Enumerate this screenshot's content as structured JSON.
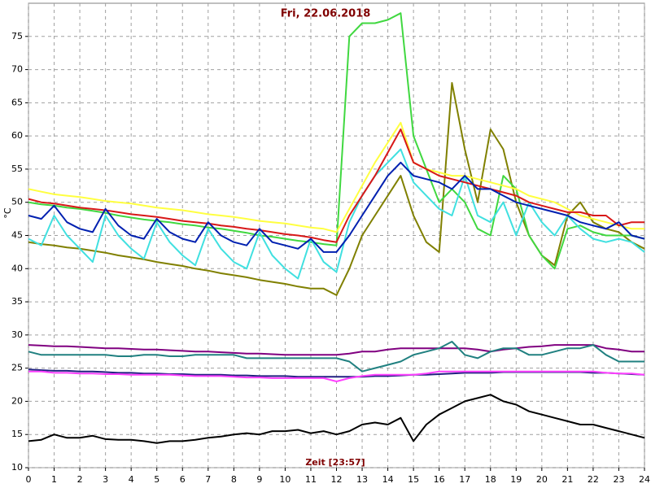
{
  "chart_data": {
    "type": "line",
    "title": "Fri, 22.06.2018",
    "x_label": "Zeit [23:57]",
    "y_label": "°C",
    "xlim": [
      0,
      24
    ],
    "xticks": [
      0,
      1,
      2,
      3,
      4,
      5,
      6,
      7,
      8,
      9,
      10,
      11,
      12,
      13,
      14,
      15,
      16,
      17,
      18,
      19,
      20,
      21,
      22,
      23,
      24
    ],
    "ylim": [
      10,
      80
    ],
    "yticks": [
      10,
      15,
      20,
      25,
      30,
      35,
      40,
      45,
      50,
      55,
      60,
      65,
      70,
      75
    ],
    "grid": true,
    "x": [
      0,
      0.5,
      1,
      1.5,
      2,
      2.5,
      3,
      3.5,
      4,
      4.5,
      5,
      5.5,
      6,
      6.5,
      7,
      7.5,
      8,
      8.5,
      9,
      9.5,
      10,
      10.5,
      11,
      11.5,
      12,
      12.5,
      13,
      13.5,
      14,
      14.5,
      15,
      15.5,
      16,
      16.5,
      17,
      17.5,
      18,
      18.5,
      19,
      19.5,
      20,
      20.5,
      21,
      21.5,
      22,
      22.5,
      23,
      23.5,
      24
    ],
    "series": [
      {
        "color": "#000000",
        "values": [
          14,
          14.2,
          15,
          14.5,
          14.5,
          14.8,
          14.3,
          14.2,
          14.2,
          14,
          13.7,
          14,
          14,
          14.2,
          14.5,
          14.7,
          15,
          15.2,
          15,
          15.5,
          15.5,
          15.7,
          15.2,
          15.5,
          15,
          15.5,
          16.5,
          16.8,
          16.5,
          17.5,
          14,
          16.5,
          18,
          19,
          20,
          20.5,
          21,
          20,
          19.5,
          18.5,
          18,
          17.5,
          17,
          16.5,
          16.5,
          16,
          15.5,
          15,
          14.5
        ]
      },
      {
        "color": "#202080",
        "values": [
          24.8,
          24.7,
          24.6,
          24.6,
          24.5,
          24.5,
          24.4,
          24.3,
          24.3,
          24.2,
          24.2,
          24.1,
          24.1,
          24,
          24,
          24,
          23.9,
          23.9,
          23.8,
          23.8,
          23.8,
          23.7,
          23.7,
          23.7,
          23.7,
          23.7,
          23.7,
          23.8,
          23.8,
          23.9,
          24,
          24,
          24.1,
          24.2,
          24.3,
          24.3,
          24.3,
          24.4,
          24.4,
          24.4,
          24.4,
          24.4,
          24.4,
          24.4,
          24.3,
          24.3,
          24.2,
          24.1,
          24
        ]
      },
      {
        "color": "#ff40ff",
        "values": [
          24.5,
          24.5,
          24.3,
          24.3,
          24.2,
          24.2,
          24.1,
          24.1,
          24,
          24,
          24,
          24,
          23.9,
          23.8,
          23.8,
          23.8,
          23.7,
          23.6,
          23.6,
          23.5,
          23.5,
          23.5,
          23.5,
          23.5,
          23,
          23.5,
          23.8,
          24,
          24,
          24,
          24,
          24.2,
          24.5,
          24.5,
          24.5,
          24.5,
          24.5,
          24.5,
          24.5,
          24.5,
          24.5,
          24.5,
          24.5,
          24.5,
          24.5,
          24.3,
          24.2,
          24.2,
          24
        ]
      },
      {
        "color": "#800080",
        "values": [
          28.5,
          28.4,
          28.3,
          28.3,
          28.2,
          28.1,
          28,
          28,
          27.9,
          27.8,
          27.8,
          27.7,
          27.6,
          27.5,
          27.5,
          27.4,
          27.3,
          27.2,
          27.2,
          27.1,
          27,
          27,
          27,
          27,
          27,
          27.2,
          27.5,
          27.5,
          27.8,
          28,
          28,
          28,
          28,
          28,
          28,
          27.8,
          27.5,
          27.8,
          28,
          28.2,
          28.3,
          28.5,
          28.5,
          28.5,
          28.5,
          28,
          27.8,
          27.5,
          27.5
        ]
      },
      {
        "color": "#208080",
        "values": [
          27.5,
          27,
          27,
          27,
          27,
          27,
          27,
          26.8,
          26.8,
          27,
          27,
          26.8,
          26.8,
          27,
          27,
          27,
          27,
          26.5,
          26.5,
          26.5,
          26.5,
          26.5,
          26.5,
          26.5,
          26.5,
          26,
          24.5,
          25,
          25.5,
          26,
          27,
          27.5,
          28,
          29,
          27,
          26.5,
          27.5,
          28,
          28,
          27,
          27,
          27.5,
          28,
          28,
          28.5,
          27,
          26,
          26,
          26
        ]
      },
      {
        "color": "#808000",
        "values": [
          44,
          43.7,
          43.5,
          43.2,
          43,
          42.7,
          42.4,
          42,
          41.7,
          41.4,
          41,
          40.7,
          40.4,
          40,
          39.7,
          39.3,
          39,
          38.7,
          38.3,
          38,
          37.7,
          37.3,
          37,
          37,
          36,
          40,
          45,
          48,
          51,
          54,
          48,
          44,
          42.5,
          68,
          58,
          50,
          61,
          58,
          50,
          45,
          42,
          40.5,
          48,
          50,
          47,
          46,
          45.5,
          44,
          43
        ]
      },
      {
        "color": "#40d840",
        "values": [
          50,
          49.7,
          49.5,
          49.2,
          49,
          48.7,
          48.4,
          48,
          47.7,
          47.4,
          47.2,
          47,
          46.7,
          46.5,
          46.2,
          46,
          45.7,
          45.4,
          45,
          44.8,
          44.5,
          44.2,
          44,
          43.7,
          43.5,
          75,
          77,
          77,
          77.5,
          78.5,
          60,
          55,
          50,
          52,
          50,
          46,
          45,
          54,
          52,
          45,
          42,
          40,
          46,
          46.5,
          45.5,
          45,
          45,
          45,
          44.5
        ]
      },
      {
        "color": "#40e0e0",
        "values": [
          44.5,
          43.5,
          48,
          45,
          43,
          41,
          48,
          45,
          43,
          41.5,
          47,
          44,
          42,
          40.5,
          46,
          43,
          41,
          40,
          45.5,
          42,
          40,
          38.5,
          44.5,
          41,
          39.5,
          47,
          51,
          54,
          56,
          58,
          53,
          51,
          49,
          48,
          54,
          48,
          47,
          50,
          45,
          50,
          47,
          45,
          48,
          46,
          44.5,
          44,
          44.5,
          44,
          42.5
        ]
      },
      {
        "color": "#ffff40",
        "values": [
          52,
          51.6,
          51.2,
          51,
          50.8,
          50.5,
          50.2,
          50,
          49.8,
          49.5,
          49.2,
          49,
          48.8,
          48.5,
          48.2,
          48,
          47.8,
          47.5,
          47.2,
          47,
          46.8,
          46.5,
          46.2,
          46,
          45.5,
          49,
          52.5,
          56,
          59,
          62,
          56,
          55,
          54.5,
          54,
          54,
          53.5,
          53,
          52.5,
          52,
          51,
          50.5,
          50,
          49,
          48,
          47.5,
          47,
          46.5,
          46,
          46
        ]
      },
      {
        "color": "#d81818",
        "values": [
          50.5,
          50,
          49.8,
          49.5,
          49.2,
          49,
          48.8,
          48.5,
          48.2,
          48,
          47.8,
          47.5,
          47.2,
          47,
          46.8,
          46.5,
          46.3,
          46,
          45.8,
          45.5,
          45.2,
          45,
          44.7,
          44.3,
          44,
          48,
          51,
          54,
          57.5,
          61,
          56,
          55,
          54,
          53.5,
          53,
          52.5,
          52,
          51.5,
          51,
          50,
          49.5,
          49,
          48.5,
          48.5,
          48,
          48,
          46.5,
          47,
          47
        ]
      },
      {
        "color": "#0020b0",
        "values": [
          48,
          47.5,
          49.5,
          47,
          46,
          45.5,
          49,
          46.5,
          45,
          44.5,
          47.5,
          45.5,
          44.5,
          44,
          47,
          45,
          44,
          43.5,
          46,
          44,
          43.5,
          43,
          44.5,
          42.5,
          42.5,
          45,
          48,
          51,
          54,
          56,
          54,
          53.5,
          53,
          52,
          54,
          52,
          52,
          51,
          50,
          49.5,
          49,
          48.5,
          48,
          47,
          46.5,
          46,
          47,
          45,
          44.5
        ]
      }
    ]
  }
}
